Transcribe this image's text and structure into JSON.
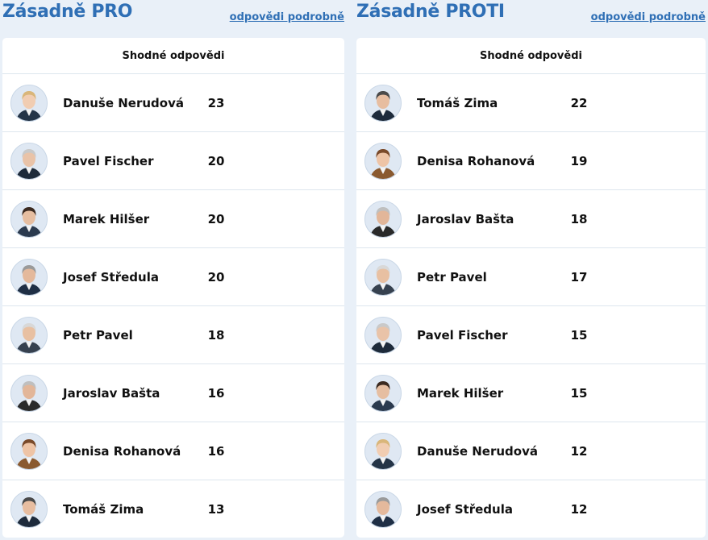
{
  "pro": {
    "title": "Zásadně PRO",
    "detail_link": "odpovědi podrobně",
    "column_header": "Shodné odpovědi",
    "rows": [
      {
        "name": "Danuše Nerudová",
        "count": "23",
        "hair": "#d9b67a",
        "skin": "#f1cdb2",
        "suit": "#243447"
      },
      {
        "name": "Pavel Fischer",
        "count": "20",
        "hair": "#c9c9c9",
        "skin": "#e9c3a8",
        "suit": "#1d2a3a"
      },
      {
        "name": "Marek Hilšer",
        "count": "20",
        "hair": "#3b2a20",
        "skin": "#e6bea1",
        "suit": "#2b3a4e"
      },
      {
        "name": "Josef Středula",
        "count": "20",
        "hair": "#9a9a9a",
        "skin": "#e4b99c",
        "suit": "#1f2f45"
      },
      {
        "name": "Petr Pavel",
        "count": "18",
        "hair": "#d8d8d8",
        "skin": "#e8c0a2",
        "suit": "#36414f"
      },
      {
        "name": "Jaroslav Bašta",
        "count": "16",
        "hair": "#bfbfbf",
        "skin": "#e2b699",
        "suit": "#2a2a2a"
      },
      {
        "name": "Denisa Rohanová",
        "count": "16",
        "hair": "#7a4a2a",
        "skin": "#eec4a6",
        "suit": "#8a5a30"
      },
      {
        "name": "Tomáš Zima",
        "count": "13",
        "hair": "#4a4a4a",
        "skin": "#e7bda0",
        "suit": "#1e2b3c"
      }
    ]
  },
  "contra": {
    "title": "Zásadně PROTI",
    "detail_link": "odpovědi podrobně",
    "column_header": "Shodné odpovědi",
    "rows": [
      {
        "name": "Tomáš Zima",
        "count": "22",
        "hair": "#4a4a4a",
        "skin": "#e7bda0",
        "suit": "#1e2b3c"
      },
      {
        "name": "Denisa Rohanová",
        "count": "19",
        "hair": "#7a4a2a",
        "skin": "#eec4a6",
        "suit": "#8a5a30"
      },
      {
        "name": "Jaroslav Bašta",
        "count": "18",
        "hair": "#bfbfbf",
        "skin": "#e2b699",
        "suit": "#2a2a2a"
      },
      {
        "name": "Petr Pavel",
        "count": "17",
        "hair": "#d8d8d8",
        "skin": "#e8c0a2",
        "suit": "#36414f"
      },
      {
        "name": "Pavel Fischer",
        "count": "15",
        "hair": "#c9c9c9",
        "skin": "#e9c3a8",
        "suit": "#1d2a3a"
      },
      {
        "name": "Marek Hilšer",
        "count": "15",
        "hair": "#3b2a20",
        "skin": "#e6bea1",
        "suit": "#2b3a4e"
      },
      {
        "name": "Danuše Nerudová",
        "count": "12",
        "hair": "#d9b67a",
        "skin": "#f1cdb2",
        "suit": "#243447"
      },
      {
        "name": "Josef Středula",
        "count": "12",
        "hair": "#9a9a9a",
        "skin": "#e4b99c",
        "suit": "#1f2f45"
      }
    ]
  },
  "colors": {
    "accent": "#2f6fb5",
    "page_background": "#e9f0f8",
    "divider": "#dde6ee"
  }
}
